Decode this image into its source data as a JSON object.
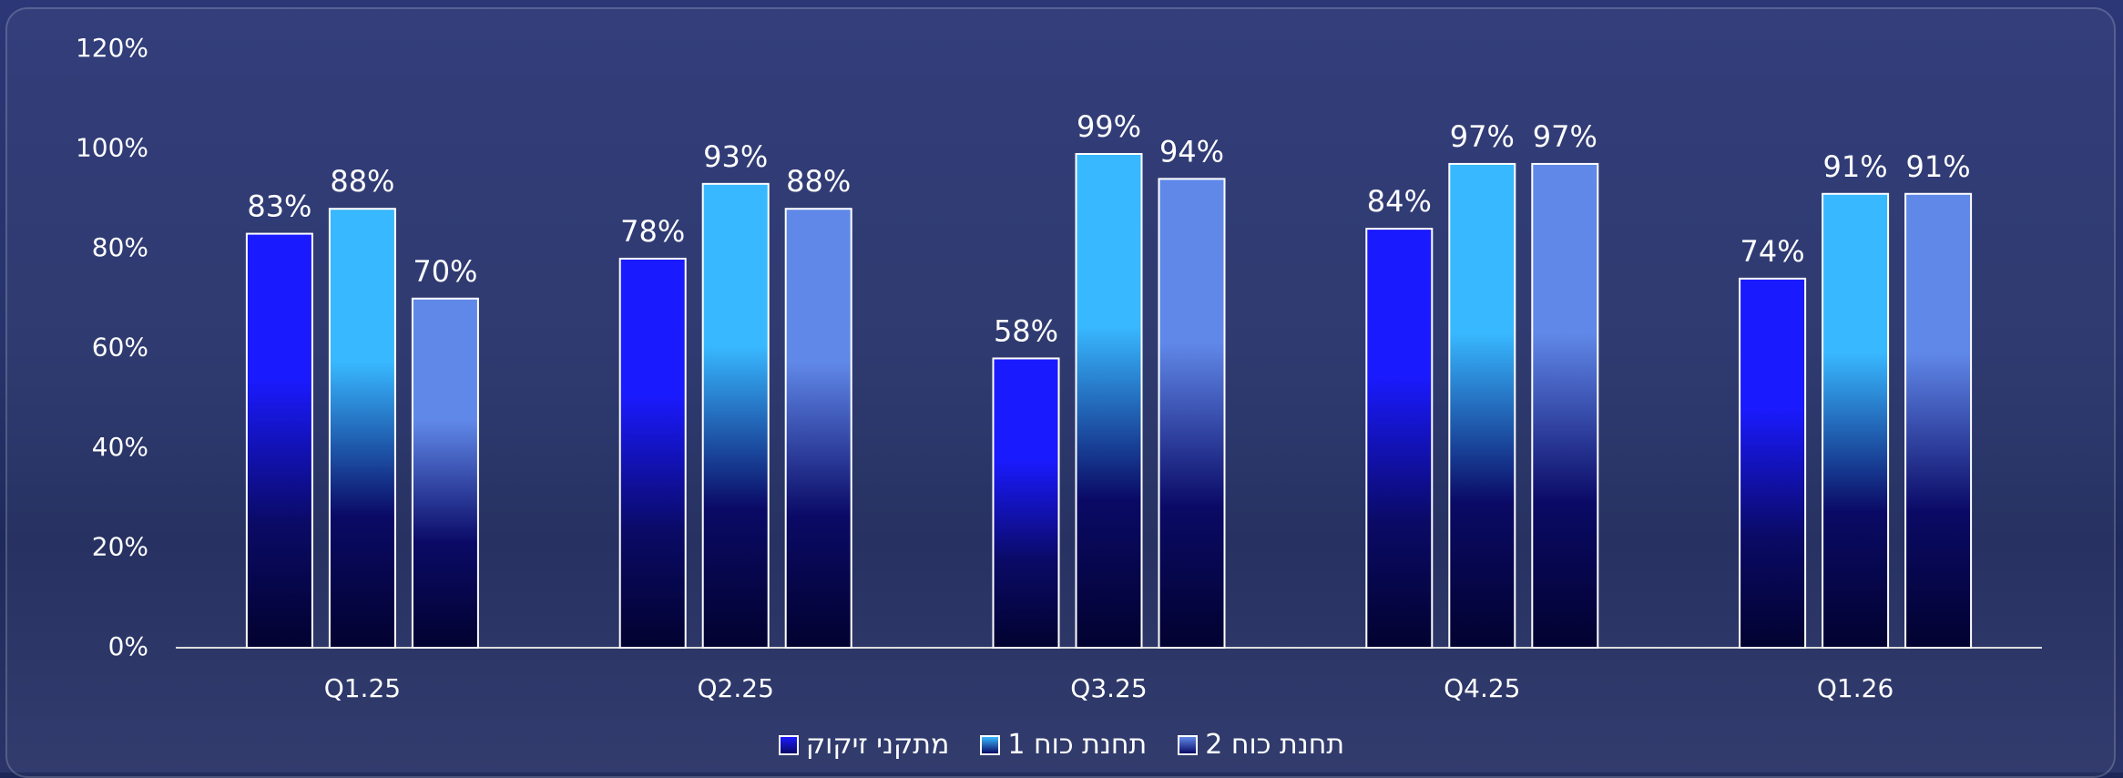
{
  "chart_data": {
    "type": "bar",
    "categories": [
      "Q1.25",
      "Q2.25",
      "Q3.25",
      "Q4.25",
      "Q1.26"
    ],
    "series": [
      {
        "name": "מתקני זיקוק",
        "color": "#1a1aff",
        "values": [
          83,
          78,
          58,
          84,
          74
        ],
        "value_labels": [
          "83%",
          "78%",
          "58%",
          "84%",
          "74%"
        ]
      },
      {
        "name": "תחנת כוח 1",
        "color": "#38b8ff",
        "values": [
          88,
          93,
          99,
          97,
          91
        ],
        "value_labels": [
          "88%",
          "93%",
          "99%",
          "97%",
          "91%"
        ]
      },
      {
        "name": "תחנת כוח 2",
        "color": "#6088e8",
        "values": [
          70,
          88,
          94,
          97,
          91
        ],
        "value_labels": [
          "70%",
          "88%",
          "94%",
          "97%",
          "91%"
        ]
      }
    ],
    "ylim": [
      0,
      120
    ],
    "yticks": [
      {
        "value": 0,
        "label": "0%"
      },
      {
        "value": 20,
        "label": "20%"
      },
      {
        "value": 40,
        "label": "40%"
      },
      {
        "value": 60,
        "label": "60%"
      },
      {
        "value": 80,
        "label": "80%"
      },
      {
        "value": 100,
        "label": "100%"
      },
      {
        "value": 120,
        "label": "120%"
      }
    ],
    "grid": false,
    "legend": "bottom"
  }
}
